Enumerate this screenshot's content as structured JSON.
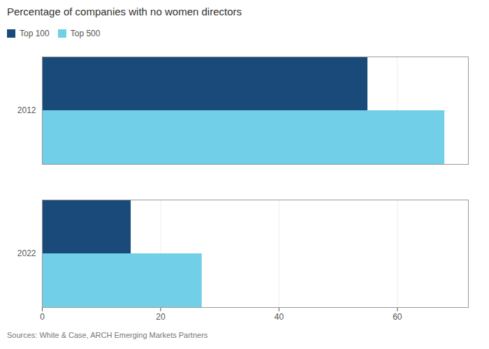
{
  "chart_data": {
    "type": "bar",
    "orientation": "horizontal",
    "title": "Percentage of companies with no women directors",
    "caption": "Sources: White & Case, ARCH Emerging Markets Partners",
    "categories": [
      "2012",
      "2022"
    ],
    "series": [
      {
        "name": "Top 100",
        "color": "#1a4a7a",
        "values": [
          55,
          15
        ]
      },
      {
        "name": "Top 500",
        "color": "#72cfe8",
        "values": [
          68,
          27
        ]
      }
    ],
    "xlim": [
      0,
      72
    ],
    "xticks": [
      0,
      20,
      40,
      60
    ],
    "grid": true,
    "legend": "upper left"
  }
}
